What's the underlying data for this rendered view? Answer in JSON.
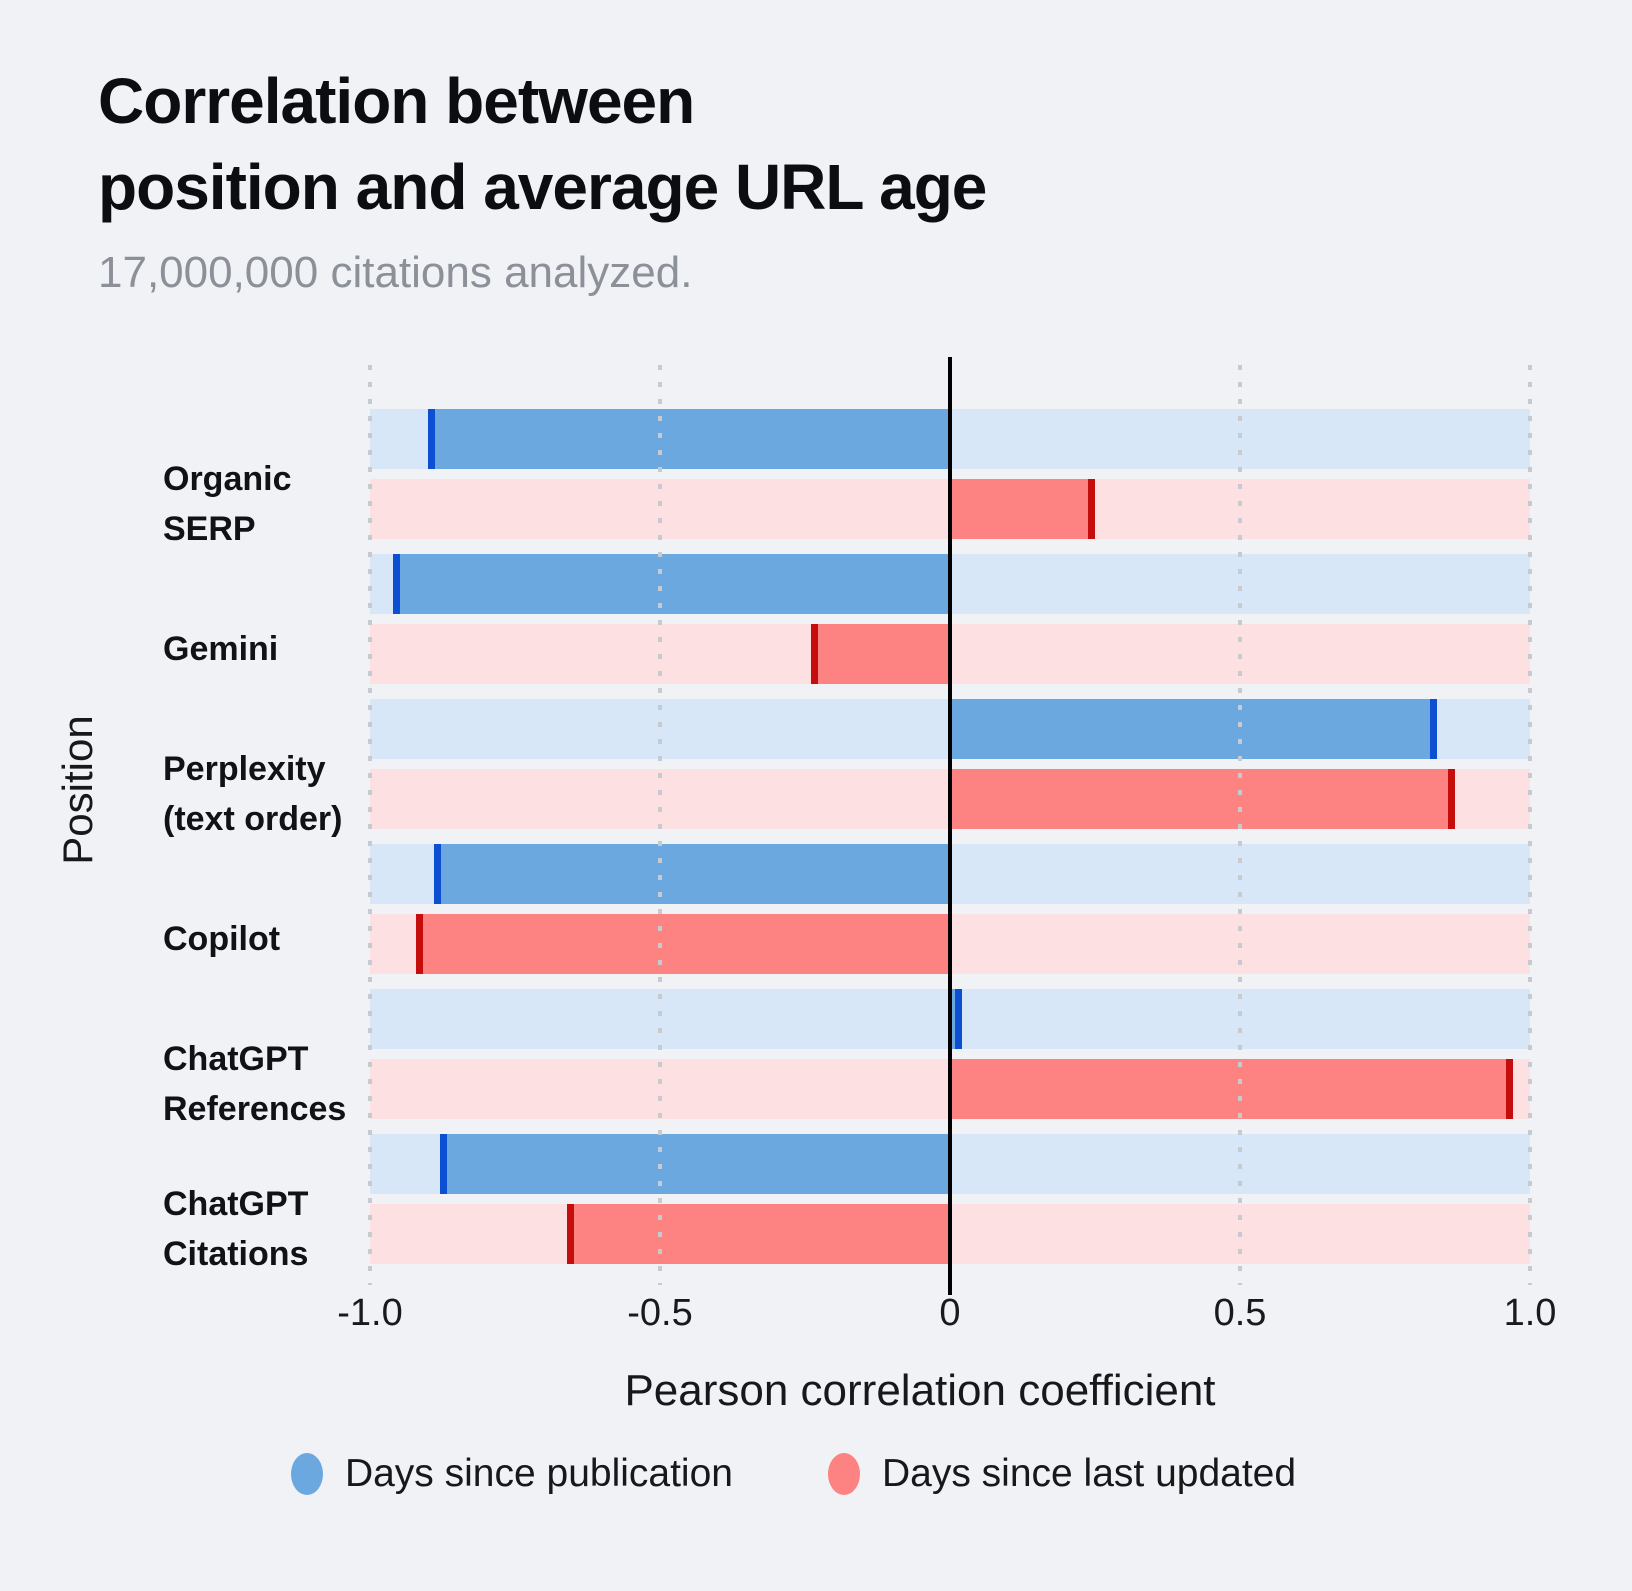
{
  "title_lines": [
    "Correlation between",
    "position and average URL age"
  ],
  "subtitle": "17,000,000 citations analyzed.",
  "colors": {
    "background": "#f1f2f5",
    "title_text": "#0c0d11",
    "subtitle_text": "#8b9099",
    "grid_dot": "#c7cace",
    "zero_line": "#000000",
    "axis_text": "#191a1d"
  },
  "chart_data": {
    "type": "bar",
    "orientation": "horizontal",
    "title": "Correlation between position and average URL age",
    "subtitle": "17,000,000 citations analyzed.",
    "xlabel": "Pearson correlation coefficient",
    "ylabel": "Position",
    "xlim": [
      -1.0,
      1.0
    ],
    "xticks": [
      -1.0,
      -0.5,
      0,
      0.5,
      1.0
    ],
    "xtick_labels": [
      "-1.0",
      "-0.5",
      "0",
      "0.5",
      "1.0"
    ],
    "grid": "dotted vertical gridlines at ticks, solid black line at 0",
    "legend_position": "bottom center",
    "categories": [
      "Organic SERP",
      "Gemini",
      "Perplexity (text order)",
      "Copilot",
      "ChatGPT References",
      "ChatGPT Citations"
    ],
    "series": [
      {
        "name": "Days since publication",
        "color": "#6aa8df",
        "marker_color": "#0c4fd2",
        "track_color": "#d7e7f8",
        "values": [
          -0.9,
          -0.96,
          0.84,
          -0.89,
          0.02,
          -0.88
        ]
      },
      {
        "name": "Days since last updated",
        "color": "#fd8282",
        "marker_color": "#c50d0d",
        "track_color": "#fce0e2",
        "values": [
          0.25,
          -0.24,
          0.87,
          -0.92,
          0.97,
          -0.66
        ]
      }
    ]
  }
}
